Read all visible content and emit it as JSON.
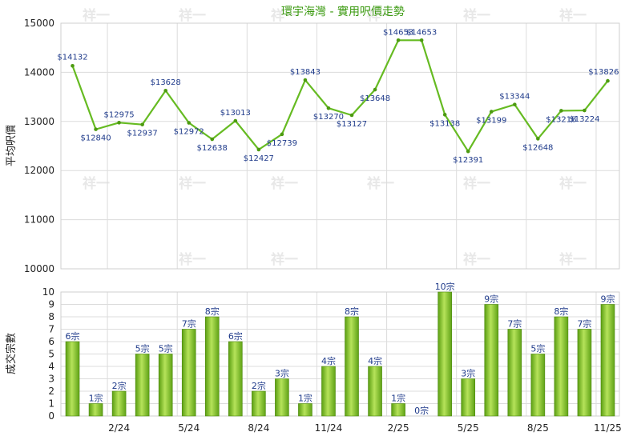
{
  "chart_data": [
    {
      "type": "line",
      "title": "環宇海灣 - 實用呎價走勢",
      "ylabel": "平均呎價",
      "ylim": [
        10000,
        15000
      ],
      "yticks": [
        "15000",
        "14000",
        "13000",
        "12000",
        "11000",
        "10000"
      ],
      "values": [
        14132,
        12840,
        12975,
        12937,
        13628,
        12972,
        12638,
        13013,
        12427,
        12739,
        13843,
        13270,
        13127,
        13648,
        14653,
        14653,
        13138,
        12391,
        13199,
        13344,
        12648,
        13218,
        13224,
        13826
      ],
      "labels": [
        "$14132",
        "$12840",
        "$12975",
        "$12937",
        "$13628",
        "$12972",
        "$12638",
        "$13013",
        "$12427",
        "$12739",
        "$13843",
        "$13270",
        "$13127",
        "$13648",
        "$14653",
        "$14653",
        "$13138",
        "$12391",
        "$13199",
        "$13344",
        "$12648",
        "$13218",
        "$13224",
        "$13826"
      ],
      "color": "#66bb22",
      "grid": true
    },
    {
      "type": "bar",
      "ylabel": "成交宗數",
      "ylim": [
        0,
        10
      ],
      "yticks": [
        "10",
        "9",
        "8",
        "7",
        "6",
        "5",
        "4",
        "3",
        "2",
        "1",
        "0"
      ],
      "xticks": [
        "2/24",
        "5/24",
        "8/24",
        "11/24",
        "2/25",
        "5/25",
        "8/25",
        "11/25"
      ],
      "values": [
        6,
        1,
        2,
        5,
        5,
        7,
        8,
        6,
        2,
        3,
        1,
        4,
        8,
        4,
        1,
        0,
        10,
        3,
        9,
        7,
        5,
        8,
        7,
        9
      ],
      "labels": [
        "6宗",
        "1宗",
        "2宗",
        "5宗",
        "5宗",
        "7宗",
        "8宗",
        "6宗",
        "2宗",
        "3宗",
        "1宗",
        "4宗",
        "8宗",
        "4宗",
        "1宗",
        "0宗",
        "10宗",
        "3宗",
        "9宗",
        "7宗",
        "5宗",
        "8宗",
        "7宗",
        "9宗"
      ],
      "color": "#7cc22a",
      "grid": true
    }
  ],
  "watermark": "祥一"
}
